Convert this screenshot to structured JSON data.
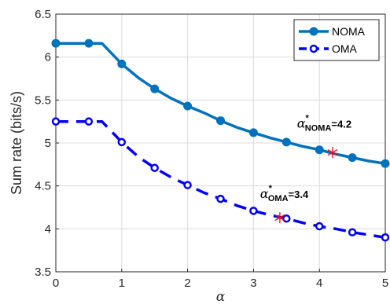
{
  "chart_data": {
    "type": "line",
    "xlabel": "α",
    "ylabel": "Sum rate (bits/s)",
    "xlim": [
      0,
      5
    ],
    "ylim": [
      3.5,
      6.5
    ],
    "xticks": [
      "0",
      "1",
      "2",
      "3",
      "4",
      "5"
    ],
    "yticks": [
      "3.5",
      "4",
      "4.5",
      "5",
      "5.5",
      "6",
      "6.5"
    ],
    "grid": true,
    "legend_position": "top-right",
    "series": [
      {
        "name": "NOMA",
        "color": "#0072BD",
        "line_style": "solid",
        "marker": "filled-circle",
        "curve_x": [
          0,
          0.25,
          0.5,
          0.7,
          1,
          1.25,
          1.5,
          1.75,
          2,
          2.25,
          2.5,
          2.75,
          3,
          3.25,
          3.5,
          3.75,
          4,
          4.25,
          4.5,
          4.75,
          5
        ],
        "curve_y": [
          6.16,
          6.16,
          6.16,
          6.16,
          5.92,
          5.76,
          5.63,
          5.52,
          5.43,
          5.35,
          5.26,
          5.18,
          5.12,
          5.06,
          5.01,
          4.96,
          4.92,
          4.87,
          4.83,
          4.79,
          4.76
        ],
        "marker_x": [
          0,
          0.5,
          1,
          1.5,
          2,
          2.5,
          3,
          3.5,
          4,
          4.5,
          5
        ],
        "marker_y": [
          6.16,
          6.16,
          5.92,
          5.63,
          5.43,
          5.26,
          5.12,
          5.01,
          4.92,
          4.83,
          4.76
        ]
      },
      {
        "name": "OMA",
        "color": "#0000FF",
        "line_style": "dashed",
        "marker": "open-circle",
        "curve_x": [
          0,
          0.25,
          0.5,
          0.7,
          1,
          1.25,
          1.5,
          1.75,
          2,
          2.25,
          2.5,
          2.75,
          3,
          3.25,
          3.5,
          3.75,
          4,
          4.25,
          4.5,
          4.75,
          5
        ],
        "curve_y": [
          5.25,
          5.25,
          5.25,
          5.25,
          5.01,
          4.84,
          4.71,
          4.6,
          4.51,
          4.42,
          4.35,
          4.27,
          4.21,
          4.16,
          4.12,
          4.07,
          4.03,
          4.0,
          3.96,
          3.93,
          3.9
        ],
        "marker_x": [
          0,
          0.5,
          1,
          1.5,
          2,
          2.5,
          3,
          3.5,
          4,
          4.5,
          5
        ],
        "marker_y": [
          5.25,
          5.25,
          5.01,
          4.71,
          4.51,
          4.35,
          4.21,
          4.12,
          4.03,
          3.96,
          3.9
        ]
      }
    ],
    "optimal_points": [
      {
        "x": 4.2,
        "y": 4.89,
        "color": "#FF0000",
        "marker": "asterisk"
      },
      {
        "x": 3.4,
        "y": 4.13,
        "color": "#FF0000",
        "marker": "asterisk"
      }
    ],
    "annotations": [
      {
        "alpha": "α",
        "star": "*",
        "sub": "NOMA",
        "value": "=4.2",
        "x": 3.66,
        "y": 5.18
      },
      {
        "alpha": "α",
        "star": "*",
        "sub": "OMA",
        "value": "=3.4",
        "x": 3.1,
        "y": 4.36
      }
    ]
  }
}
